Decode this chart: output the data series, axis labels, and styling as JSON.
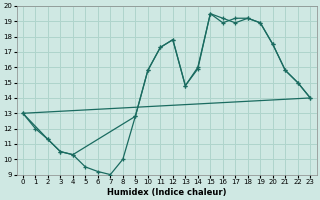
{
  "xlabel": "Humidex (Indice chaleur)",
  "xlim": [
    -0.5,
    23.5
  ],
  "ylim": [
    9,
    20
  ],
  "xticks": [
    0,
    1,
    2,
    3,
    4,
    5,
    6,
    7,
    8,
    9,
    10,
    11,
    12,
    13,
    14,
    15,
    16,
    17,
    18,
    19,
    20,
    21,
    22,
    23
  ],
  "yticks": [
    9,
    10,
    11,
    12,
    13,
    14,
    15,
    16,
    17,
    18,
    19,
    20
  ],
  "bg_color": "#cfe8e3",
  "line_color": "#1a6b60",
  "grid_color": "#afd4cc",
  "line1_x": [
    0,
    1,
    2,
    3,
    4,
    5,
    6,
    7,
    8,
    9,
    10,
    11,
    12,
    13,
    14,
    15,
    16,
    17,
    18,
    19,
    20,
    21,
    22,
    23
  ],
  "line1_y": [
    13,
    12,
    11.3,
    10.5,
    10.3,
    9.5,
    9.2,
    9.0,
    10.0,
    12.8,
    15.8,
    17.3,
    17.8,
    14.8,
    15.9,
    19.5,
    18.9,
    19.2,
    19.2,
    18.9,
    17.5,
    15.8,
    15.0,
    14.0
  ],
  "line2_x": [
    0,
    23
  ],
  "line2_y": [
    13,
    14.0
  ],
  "line3_x": [
    0,
    2,
    3,
    4,
    9,
    10,
    11,
    12,
    13,
    14,
    15,
    16,
    17,
    18,
    19,
    20,
    21,
    22,
    23
  ],
  "line3_y": [
    13,
    11.3,
    10.5,
    10.3,
    12.8,
    15.8,
    17.3,
    17.8,
    14.8,
    16.0,
    19.5,
    19.2,
    18.9,
    19.2,
    18.9,
    17.5,
    15.8,
    15.0,
    14.0
  ]
}
